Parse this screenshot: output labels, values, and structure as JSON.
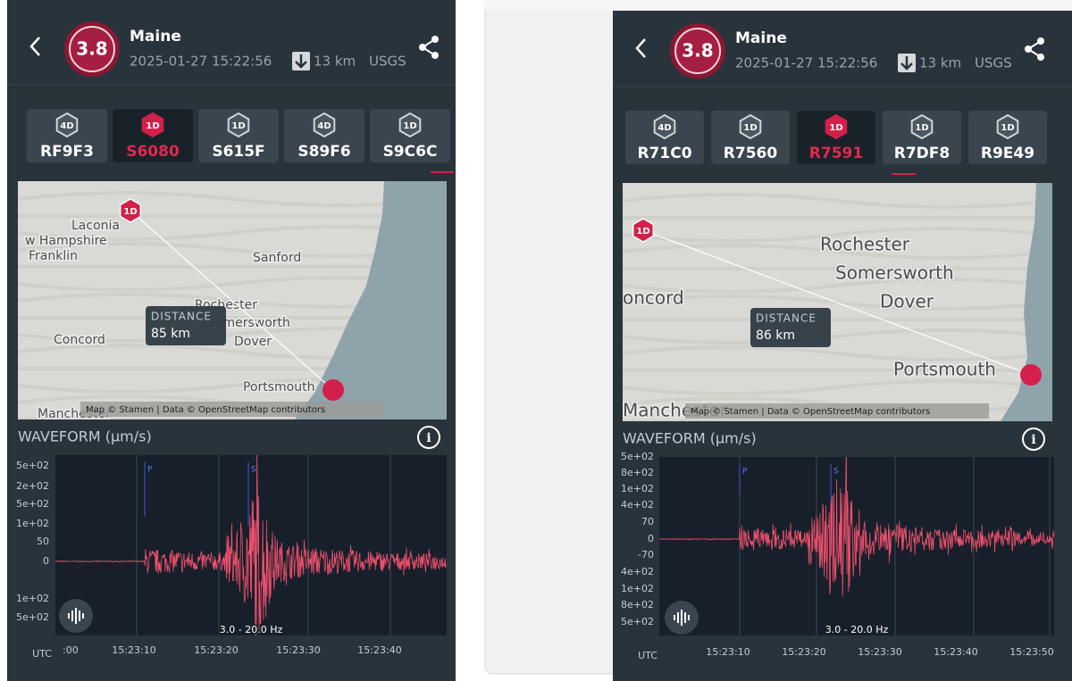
{
  "panels": [
    {
      "header": {
        "magnitude": "3.8",
        "place": "Maine",
        "datetime": "2025-01-27 15:22:56",
        "depth": "13 km",
        "source": "USGS"
      },
      "tabs": [
        {
          "badge": "4D",
          "code": "RF9F3"
        },
        {
          "badge": "1D",
          "code": "S6080"
        },
        {
          "badge": "1D",
          "code": "S615F"
        },
        {
          "badge": "4D",
          "code": "S89F6"
        },
        {
          "badge": "1D",
          "code": "S9C6C"
        }
      ],
      "map": {
        "labels": [
          "Laconia",
          "w Hampshire",
          "Franklin",
          "Sanford",
          "Rochester",
          "Somersworth",
          "Dover",
          "Concord",
          "Portsmouth",
          "Manchester"
        ],
        "marker": "1D",
        "distance_label": "DISTANCE",
        "distance": "85 km",
        "attribution": "Map © Stamen | Data © OpenStreetMap contributors"
      },
      "waveform": {
        "title": "WAVEFORM (µm/s)",
        "y_labels": [
          "5e+02",
          "2e+02",
          "5e+02",
          "1e+02",
          "50",
          "0",
          "1e+02",
          "5e+02"
        ],
        "x_labels": [
          ":00",
          "15:23:10",
          "15:23:20",
          "15:23:30",
          "15:23:40"
        ],
        "utc": "UTC",
        "p": "P",
        "s": "S",
        "band": "3.0 - 20.0 Hz"
      }
    },
    {
      "header": {
        "magnitude": "3.8",
        "place": "Maine",
        "datetime": "2025-01-27 15:22:56",
        "depth": "13 km",
        "source": "USGS"
      },
      "tabs": [
        {
          "badge": "4D",
          "code": "R71C0"
        },
        {
          "badge": "1D",
          "code": "R7560"
        },
        {
          "badge": "1D",
          "code": "R7591"
        },
        {
          "badge": "1D",
          "code": "R7DF8"
        },
        {
          "badge": "1D",
          "code": "R9E49"
        }
      ],
      "map": {
        "labels": [
          "Rochester",
          "Somersworth",
          "Dover",
          "oncord",
          "Portsmouth",
          "Manchester"
        ],
        "marker": "1D",
        "distance_label": "DISTANCE",
        "distance": "86 km",
        "attribution": "Map © Stamen | Data © OpenStreetMap contributors"
      },
      "waveform": {
        "title": "WAVEFORM (µm/s)",
        "y_labels": [
          "5e+02",
          "8e+02",
          "1e+02",
          "4e+02",
          "70",
          "0",
          "-70",
          "4e+02",
          "1e+02",
          "8e+02",
          "5e+02"
        ],
        "x_labels": [
          "15:23:10",
          "15:23:20",
          "15:23:30",
          "15:23:40",
          "15:23:50"
        ],
        "utc": "UTC",
        "p": "P",
        "s": "S",
        "band": "3.0 - 20.0 Hz"
      }
    }
  ]
}
